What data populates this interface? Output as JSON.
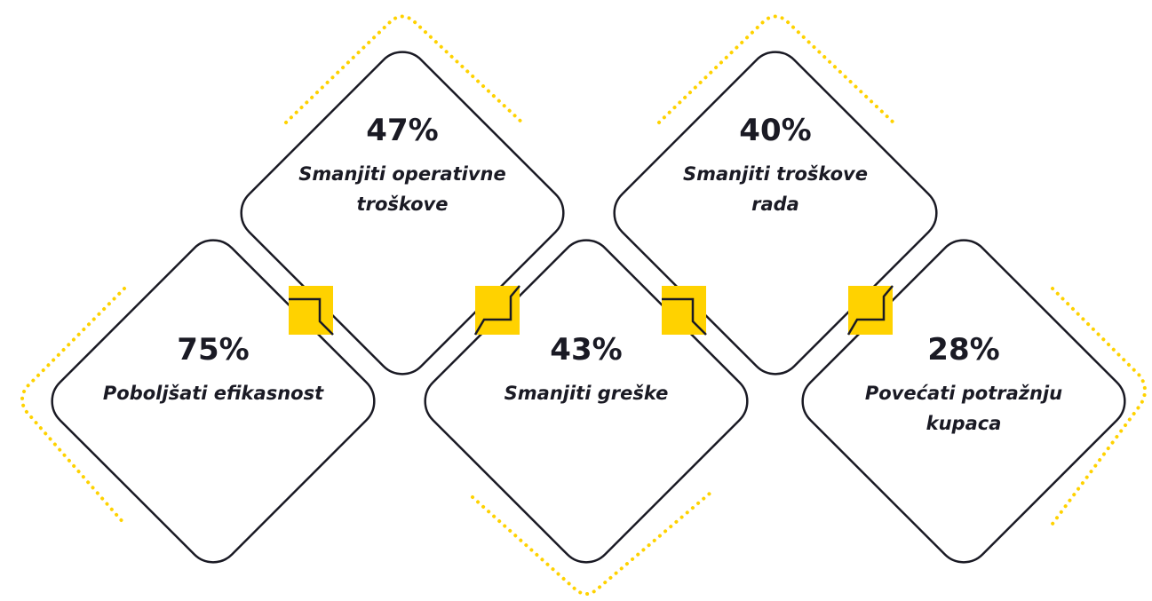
{
  "items": [
    {
      "value": "47%",
      "label": [
        "Smanjiti operativne",
        "troškove"
      ]
    },
    {
      "value": "40%",
      "label": [
        "Smanjiti troškove",
        "rada"
      ]
    },
    {
      "value": "75%",
      "label": [
        "Poboljšati efikasnost"
      ]
    },
    {
      "value": "43%",
      "label": [
        "Smanjiti greške"
      ]
    },
    {
      "value": "28%",
      "label": [
        "Povećati potražnju",
        "kupaca"
      ]
    }
  ]
}
